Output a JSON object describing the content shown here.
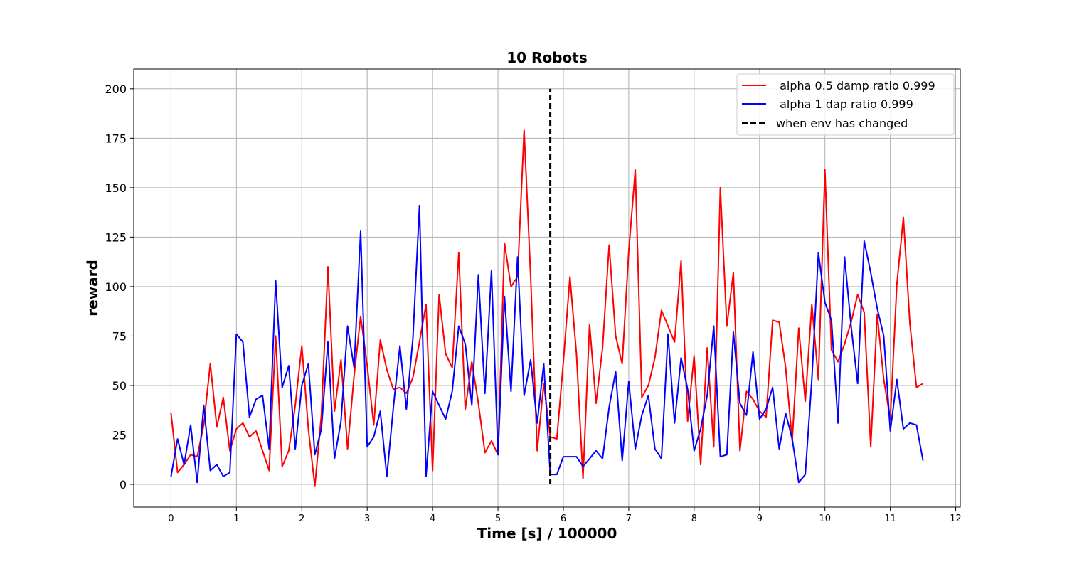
{
  "chart_data": {
    "type": "line",
    "title": "10 Robots",
    "xlabel": "Time [s] / 100000",
    "ylabel": "reward",
    "xlim": [
      -0.57,
      12.07
    ],
    "ylim": [
      -11.5,
      210
    ],
    "xticks": [
      0,
      1,
      2,
      3,
      4,
      5,
      6,
      7,
      8,
      9,
      10,
      11,
      12
    ],
    "yticks": [
      0,
      25,
      50,
      75,
      100,
      125,
      150,
      175,
      200
    ],
    "grid": true,
    "legend_position": "top-right",
    "series": [
      {
        "name": " alpha 0.5 damp ratio 0.999",
        "color": "#ff0000",
        "x": [
          0,
          0.1,
          0.2,
          0.3,
          0.4,
          0.5,
          0.6,
          0.7,
          0.8,
          0.9,
          1.0,
          1.1,
          1.2,
          1.3,
          1.4,
          1.5,
          1.6,
          1.7,
          1.8,
          1.9,
          2.0,
          2.1,
          2.2,
          2.3,
          2.4,
          2.5,
          2.6,
          2.7,
          2.8,
          2.9,
          3.0,
          3.1,
          3.2,
          3.3,
          3.4,
          3.5,
          3.6,
          3.7,
          3.8,
          3.9,
          4.0,
          4.1,
          4.2,
          4.3,
          4.4,
          4.5,
          4.6,
          4.7,
          4.8,
          4.9,
          5.0,
          5.1,
          5.2,
          5.3,
          5.4,
          5.5,
          5.6,
          5.7,
          5.8,
          5.9,
          6.0,
          6.1,
          6.2,
          6.3,
          6.4,
          6.5,
          6.6,
          6.7,
          6.8,
          6.9,
          7.0,
          7.1,
          7.2,
          7.3,
          7.4,
          7.5,
          7.6,
          7.7,
          7.8,
          7.9,
          8.0,
          8.1,
          8.2,
          8.3,
          8.4,
          8.5,
          8.6,
          8.7,
          8.8,
          8.9,
          9.0,
          9.1,
          9.2,
          9.3,
          9.4,
          9.5,
          9.6,
          9.7,
          9.8,
          9.9,
          10.0,
          10.1,
          10.2,
          10.3,
          10.4,
          10.5,
          10.6,
          10.7,
          10.8,
          10.9,
          11.0,
          11.1,
          11.2,
          11.3,
          11.4,
          11.5
        ],
        "y": [
          36,
          6,
          10,
          15,
          14,
          30,
          61,
          29,
          44,
          17,
          28,
          31,
          24,
          27,
          17,
          7,
          75,
          9,
          17,
          40,
          70,
          28,
          -1,
          35,
          110,
          37,
          63,
          18,
          55,
          85,
          60,
          30,
          73,
          58,
          48,
          49,
          46,
          54,
          72,
          91,
          7,
          96,
          66,
          59,
          117,
          38,
          62,
          41,
          16,
          22,
          15,
          122,
          100,
          105,
          179,
          105,
          17,
          51,
          24,
          23,
          62,
          105,
          66,
          3,
          81,
          41,
          69,
          121,
          75,
          61,
          118,
          159,
          44,
          50,
          64,
          88,
          80,
          72,
          113,
          32,
          65,
          10,
          69,
          19,
          150,
          80,
          107,
          17,
          47,
          43,
          37,
          34,
          83,
          82,
          59,
          22,
          79,
          42,
          91,
          53,
          159,
          68,
          62,
          71,
          82,
          96,
          87,
          19,
          86,
          53,
          33,
          101,
          135,
          81,
          49,
          51
        ]
      },
      {
        "name": " alpha 1 dap ratio 0.999",
        "color": "#0000ff",
        "x": [
          0,
          0.1,
          0.2,
          0.3,
          0.4,
          0.5,
          0.6,
          0.7,
          0.8,
          0.9,
          1.0,
          1.1,
          1.2,
          1.3,
          1.4,
          1.5,
          1.6,
          1.7,
          1.8,
          1.9,
          2.0,
          2.1,
          2.2,
          2.3,
          2.4,
          2.5,
          2.6,
          2.7,
          2.8,
          2.9,
          3.0,
          3.1,
          3.2,
          3.3,
          3.4,
          3.5,
          3.6,
          3.7,
          3.8,
          3.9,
          4.0,
          4.1,
          4.2,
          4.3,
          4.4,
          4.5,
          4.6,
          4.7,
          4.8,
          4.9,
          5.0,
          5.1,
          5.2,
          5.3,
          5.4,
          5.5,
          5.6,
          5.7,
          5.8,
          5.9,
          6.0,
          6.1,
          6.2,
          6.3,
          6.4,
          6.5,
          6.6,
          6.7,
          6.8,
          6.9,
          7.0,
          7.1,
          7.2,
          7.3,
          7.4,
          7.5,
          7.6,
          7.7,
          7.8,
          7.9,
          8.0,
          8.1,
          8.2,
          8.3,
          8.4,
          8.5,
          8.6,
          8.7,
          8.8,
          8.9,
          9.0,
          9.1,
          9.2,
          9.3,
          9.4,
          9.5,
          9.6,
          9.7,
          9.8,
          9.9,
          10.0,
          10.1,
          10.2,
          10.3,
          10.4,
          10.5,
          10.6,
          10.7,
          10.8,
          10.9,
          11.0,
          11.1,
          11.2,
          11.3,
          11.4,
          11.5
        ],
        "y": [
          4,
          23,
          10,
          30,
          1,
          40,
          7,
          10,
          4,
          6,
          76,
          72,
          34,
          43,
          45,
          18,
          103,
          49,
          60,
          18,
          50,
          61,
          15,
          28,
          72,
          13,
          32,
          80,
          59,
          128,
          19,
          24,
          37,
          4,
          39,
          70,
          38,
          74,
          141,
          4,
          47,
          40,
          33,
          47,
          80,
          71,
          40,
          106,
          46,
          108,
          15,
          95,
          47,
          115,
          45,
          63,
          31,
          61,
          5,
          5,
          14,
          14,
          14,
          9,
          13,
          17,
          13,
          39,
          57,
          12,
          52,
          18,
          35,
          45,
          18,
          13,
          76,
          31,
          64,
          48,
          17,
          28,
          45,
          80,
          14,
          15,
          77,
          41,
          35,
          67,
          33,
          38,
          49,
          18,
          36,
          23,
          1,
          5,
          53,
          117,
          92,
          83,
          31,
          115,
          80,
          51,
          123,
          107,
          89,
          75,
          27,
          53,
          28,
          31,
          30,
          12
        ]
      },
      {
        "name": "when env has changed",
        "color": "#000000",
        "style": "dashed",
        "x": [
          5.8,
          5.8
        ],
        "y": [
          0,
          200
        ]
      }
    ]
  }
}
